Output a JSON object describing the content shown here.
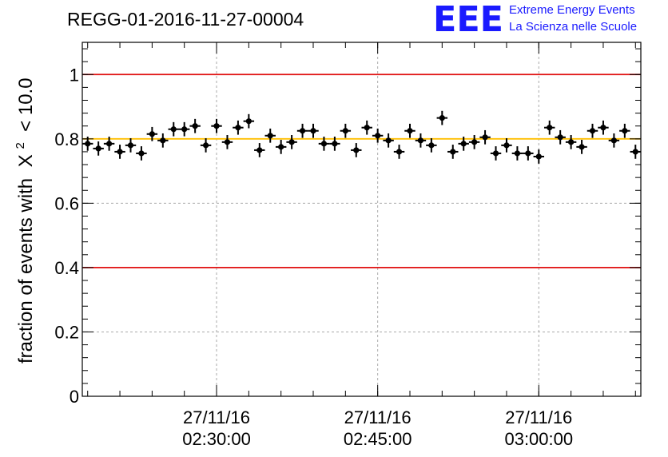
{
  "header": {
    "run_title": "REGG-01-2016-11-27-00004",
    "logo_text": "EEE",
    "logo_line1": "Extreme Energy Events",
    "logo_line2": "La Scienza nelle Scuole"
  },
  "colors": {
    "limit_line": "#e01010",
    "mean_line": "#ffbf00",
    "points": "#000000",
    "grid": "#aaaaaa",
    "logo": "#1a1aff"
  },
  "chart_data": {
    "type": "scatter",
    "title": "REGG-01-2016-11-27-00004",
    "ylabel": "fraction of events with",
    "ylabel_math": {
      "symbol": "X",
      "superscript": "2",
      "suffix": " < 10.0"
    },
    "xlabel": "",
    "ylim": [
      0,
      1.1
    ],
    "xlim": [
      "27/11/16 02:17:30",
      "27/11/16 03:09:30"
    ],
    "x_ticks": [
      {
        "date": "27/11/16",
        "time": "02:30:00"
      },
      {
        "date": "27/11/16",
        "time": "02:45:00"
      },
      {
        "date": "27/11/16",
        "time": "03:00:00"
      }
    ],
    "y_ticks": [
      "0",
      "0.2",
      "0.4",
      "0.6",
      "0.8",
      "1"
    ],
    "y_tick_values": [
      0,
      0.2,
      0.4,
      0.6,
      0.8,
      1.0
    ],
    "grid": true,
    "horizontal_lines": [
      {
        "y": 1.0,
        "role": "limit"
      },
      {
        "y": 0.4,
        "role": "limit"
      },
      {
        "y": 0.8,
        "role": "mean"
      }
    ],
    "x": [
      "02:18:00",
      "02:19:00",
      "02:20:00",
      "02:21:00",
      "02:22:00",
      "02:23:00",
      "02:24:00",
      "02:25:00",
      "02:26:00",
      "02:27:00",
      "02:28:00",
      "02:29:00",
      "02:30:00",
      "02:31:00",
      "02:32:00",
      "02:33:00",
      "02:34:00",
      "02:35:00",
      "02:36:00",
      "02:37:00",
      "02:38:00",
      "02:39:00",
      "02:40:00",
      "02:41:00",
      "02:42:00",
      "02:43:00",
      "02:44:00",
      "02:45:00",
      "02:46:00",
      "02:47:00",
      "02:48:00",
      "02:49:00",
      "02:50:00",
      "02:51:00",
      "02:52:00",
      "02:53:00",
      "02:54:00",
      "02:55:00",
      "02:56:00",
      "02:57:00",
      "02:58:00",
      "02:59:00",
      "03:00:00",
      "03:01:00",
      "03:02:00",
      "03:03:00",
      "03:04:00",
      "03:05:00",
      "03:06:00",
      "03:07:00",
      "03:08:00",
      "03:09:00"
    ],
    "y": [
      0.785,
      0.77,
      0.785,
      0.76,
      0.78,
      0.755,
      0.815,
      0.795,
      0.83,
      0.83,
      0.84,
      0.78,
      0.84,
      0.79,
      0.835,
      0.855,
      0.765,
      0.81,
      0.775,
      0.79,
      0.825,
      0.825,
      0.785,
      0.785,
      0.825,
      0.765,
      0.835,
      0.81,
      0.795,
      0.76,
      0.825,
      0.795,
      0.78,
      0.865,
      0.76,
      0.785,
      0.79,
      0.805,
      0.755,
      0.78,
      0.755,
      0.755,
      0.745,
      0.835,
      0.805,
      0.79,
      0.775,
      0.825,
      0.835,
      0.795,
      0.825,
      0.76
    ],
    "y_error": 0.022,
    "x_error_minutes": 0.5
  }
}
